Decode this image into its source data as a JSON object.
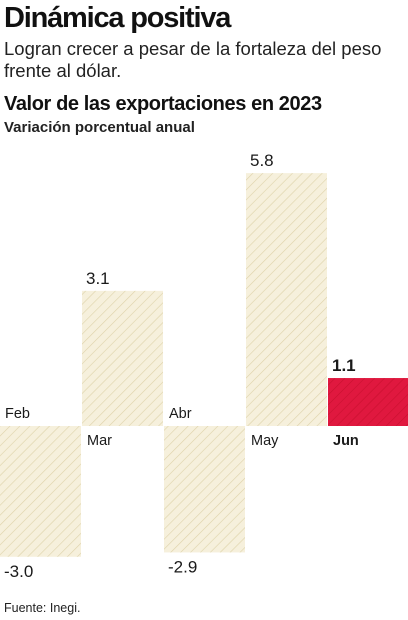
{
  "header": {
    "headline": "Dinámica positiva",
    "deck": "Logran crecer a pesar de la fortaleza del peso frente al dólar."
  },
  "chart_data": {
    "type": "bar",
    "title": "Valor de las exportaciones en 2023",
    "subtitle": "Variación porcentual anual",
    "categories": [
      "Feb",
      "Mar",
      "Abr",
      "May",
      "Jun"
    ],
    "values": [
      -3.0,
      3.1,
      -2.9,
      5.8,
      1.1
    ],
    "value_labels": [
      "-3.0",
      "3.1",
      "-2.9",
      "5.8",
      "1.1"
    ],
    "highlight": "Jun",
    "colors": {
      "bar_fill": "#f6f0dc",
      "bar_hatch": "#ddd2a9",
      "highlight_fill": "#e0183f",
      "highlight_hatch": "#c8102e"
    },
    "grid": false
  },
  "footer": {
    "source": "Fuente: Inegi."
  }
}
